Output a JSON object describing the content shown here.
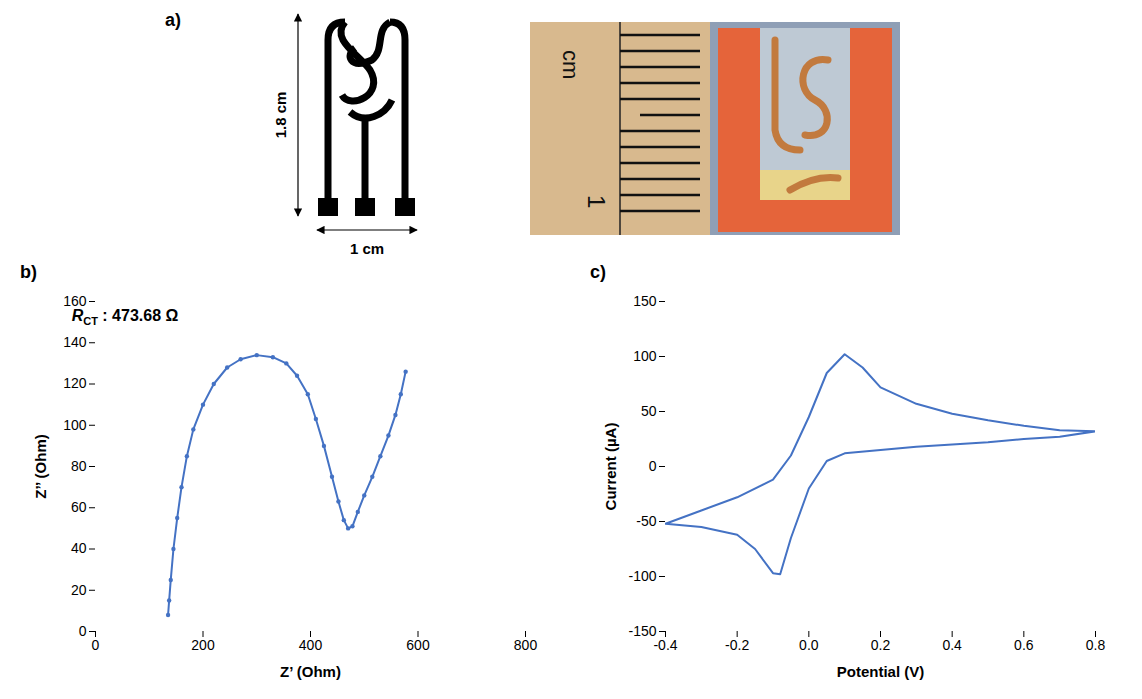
{
  "diagram": {
    "panel": "a)",
    "height_label": "1.8 cm",
    "width_label": "1 cm",
    "photo_ruler_unit": "cm",
    "photo_ruler_number": "1"
  },
  "chart_data": [
    {
      "panel": "b)",
      "type": "line",
      "marker": "circle",
      "color": "#4472c4",
      "x_label": "Z’ (Ohm)",
      "y_label": "Z’’ (Ohm)",
      "annotation": {
        "symbol": "R",
        "subscript": "CT",
        "text": " : 473.68 Ω"
      },
      "x": [
        135,
        137,
        140,
        145,
        152,
        160,
        170,
        182,
        200,
        220,
        245,
        270,
        300,
        330,
        355,
        375,
        395,
        410,
        425,
        440,
        452,
        462,
        470,
        478,
        488,
        500,
        515,
        530,
        545,
        558,
        568,
        577
      ],
      "values": [
        8,
        15,
        25,
        40,
        55,
        70,
        85,
        98,
        110,
        120,
        128,
        132,
        134,
        133,
        130,
        124,
        115,
        103,
        90,
        75,
        63,
        54,
        50,
        51,
        58,
        66,
        75,
        85,
        95,
        105,
        115,
        126
      ],
      "xlim": [
        0,
        800
      ],
      "xticks": [
        0,
        200,
        400,
        600,
        800
      ],
      "ylim": [
        0,
        160
      ],
      "yticks": [
        0,
        20,
        40,
        60,
        80,
        100,
        120,
        140,
        160
      ],
      "grid": false
    },
    {
      "panel": "c)",
      "type": "line",
      "marker": "none",
      "color": "#4472c4",
      "x_label": "Potential (V)",
      "y_label": "Current (µA)",
      "x": [
        -0.4,
        -0.3,
        -0.2,
        -0.1,
        -0.05,
        0.0,
        0.05,
        0.1,
        0.15,
        0.2,
        0.3,
        0.4,
        0.5,
        0.6,
        0.7,
        0.8,
        0.7,
        0.6,
        0.5,
        0.4,
        0.3,
        0.2,
        0.1,
        0.05,
        0.0,
        -0.05,
        -0.08,
        -0.1,
        -0.15,
        -0.2,
        -0.3,
        -0.4
      ],
      "values": [
        -52,
        -40,
        -28,
        -12,
        10,
        45,
        85,
        102,
        90,
        72,
        57,
        48,
        42,
        37,
        33,
        32,
        27,
        25,
        22,
        20,
        18,
        15,
        12,
        5,
        -20,
        -65,
        -98,
        -97,
        -75,
        -62,
        -55,
        -52
      ],
      "xlim": [
        -0.4,
        0.8
      ],
      "xticks": [
        -0.4,
        -0.2,
        {
          "value": 0,
          "label": "0.0"
        },
        0.2,
        0.4,
        0.6,
        0.8
      ],
      "ylim": [
        -150,
        150
      ],
      "yticks": [
        -150,
        -100,
        -50,
        0,
        50,
        100,
        150
      ],
      "grid": false
    }
  ]
}
